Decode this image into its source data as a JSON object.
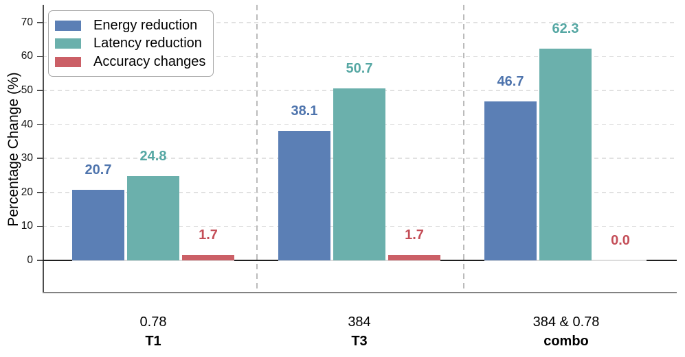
{
  "chart_data": {
    "type": "bar",
    "title": "",
    "xlabel": "",
    "ylabel": "Percentage Change (%)",
    "ylim": [
      -9.5,
      75
    ],
    "yticks": [
      0,
      10,
      20,
      30,
      40,
      50,
      60,
      70
    ],
    "grid": "horizontal-dashed",
    "legend_position": "upper-left",
    "separators": "dashed vertical lines between category groups",
    "categories": [
      {
        "value_label": "0.78",
        "name_label": "T1"
      },
      {
        "value_label": "384",
        "name_label": "T3"
      },
      {
        "value_label": "384 & 0.78",
        "name_label": "combo"
      }
    ],
    "series": [
      {
        "name": "Energy reduction",
        "color": "#5b7fb5",
        "label_color": "#4e74ad",
        "values": [
          20.7,
          38.1,
          46.7
        ]
      },
      {
        "name": "Latency reduction",
        "color": "#6bb0ac",
        "label_color": "#55a7a3",
        "values": [
          24.8,
          50.7,
          62.3
        ]
      },
      {
        "name": "Accuracy changes",
        "color": "#cb5f66",
        "label_color": "#c44e58",
        "values": [
          1.7,
          1.7,
          0.0
        ]
      }
    ]
  },
  "colors": {
    "background": "#ffffff",
    "baseline": "#1f1f1f",
    "group_baseline": "#dcdcdc",
    "gridline": "#e1e1e1",
    "separator": "#bbbbbb",
    "spine_left": "#4d4d4d",
    "spine_bottom": "#828282",
    "legend_border": "#a6a6a6",
    "text": "#111111"
  }
}
